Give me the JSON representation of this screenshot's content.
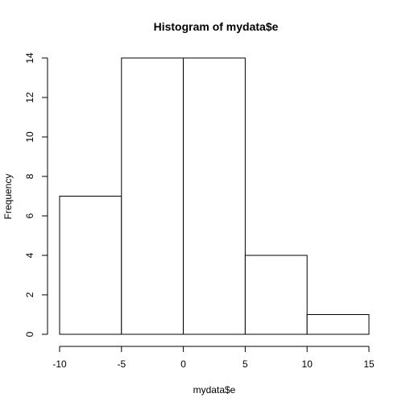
{
  "chart_data": {
    "type": "bar",
    "title": "Histogram of mydata$e",
    "xlabel": "mydata$e",
    "ylabel": "Frequency",
    "bins": [
      {
        "from": -10,
        "to": -5,
        "count": 7
      },
      {
        "from": -5,
        "to": 0,
        "count": 14
      },
      {
        "from": 0,
        "to": 5,
        "count": 14
      },
      {
        "from": 5,
        "to": 10,
        "count": 4
      },
      {
        "from": 10,
        "to": 15,
        "count": 1
      }
    ],
    "xlim": [
      -10,
      15
    ],
    "ylim": [
      0,
      14
    ],
    "x_ticks": [
      "-10",
      "-5",
      "0",
      "5",
      "10",
      "15"
    ],
    "y_ticks": [
      "0",
      "2",
      "4",
      "6",
      "8",
      "10",
      "12",
      "14"
    ],
    "grid": false,
    "legend": "none",
    "bar_fill": "#ffffff",
    "bar_stroke": "#000000"
  }
}
